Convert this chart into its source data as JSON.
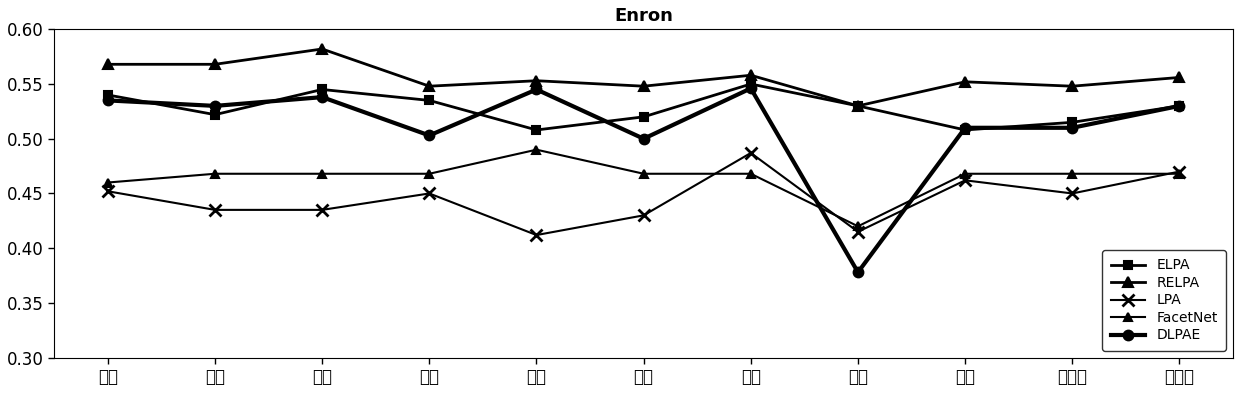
{
  "title": "Enron",
  "x_labels": [
    "二月",
    "三月",
    "四月",
    "五月",
    "六月",
    "七月",
    "八月",
    "九月",
    "十月",
    "十一月",
    "十二月"
  ],
  "ylim": [
    0.3,
    0.6
  ],
  "yticks": [
    0.3,
    0.35,
    0.4,
    0.45,
    0.5,
    0.55,
    0.6
  ],
  "series": {
    "ELPA": [
      0.54,
      0.522,
      0.545,
      0.535,
      0.508,
      0.52,
      0.55,
      0.53,
      0.508,
      0.515,
      0.53
    ],
    "RELPA": [
      0.568,
      0.568,
      0.582,
      0.548,
      0.553,
      0.548,
      0.558,
      0.53,
      0.552,
      0.548,
      0.556
    ],
    "LPA": [
      0.452,
      0.435,
      0.435,
      0.45,
      0.412,
      0.43,
      0.487,
      0.415,
      0.462,
      0.45,
      0.47
    ],
    "FacetNet": [
      0.46,
      0.468,
      0.468,
      0.468,
      0.49,
      0.468,
      0.468,
      0.42,
      0.468,
      0.468,
      0.468
    ],
    "DLPAE": [
      0.535,
      0.53,
      0.538,
      0.503,
      0.545,
      0.5,
      0.546,
      0.378,
      0.51,
      0.51,
      0.53
    ]
  },
  "legend_order": [
    "ELPA",
    "RELPA",
    "LPA",
    "FacetNet",
    "DLPAE"
  ],
  "line_configs": {
    "ELPA": {
      "lw": 2.0,
      "ms": 6,
      "marker": "s",
      "mfc": "black",
      "mew": 1.5
    },
    "RELPA": {
      "lw": 2.0,
      "ms": 7,
      "marker": "^",
      "mfc": "black",
      "mew": 1.5
    },
    "LPA": {
      "lw": 1.5,
      "ms": 8,
      "marker": "x",
      "mfc": "none",
      "mew": 2.0
    },
    "FacetNet": {
      "lw": 1.5,
      "ms": 6,
      "marker": "^",
      "mfc": "black",
      "mew": 1.5
    },
    "DLPAE": {
      "lw": 3.0,
      "ms": 7,
      "marker": "o",
      "mfc": "black",
      "mew": 1.5
    }
  },
  "title_fontsize": 13,
  "tick_fontsize": 12,
  "legend_fontsize": 10
}
